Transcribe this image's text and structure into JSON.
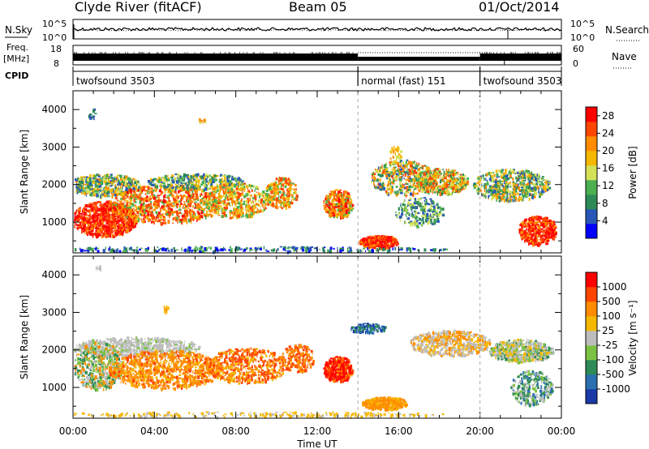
{
  "header": {
    "station": "Clyde River (fitACF)",
    "beam": "Beam 05",
    "date": "01/Oct/2014"
  },
  "strips": {
    "nsky_label": "N.Sky",
    "nsky_ticks": [
      "10^5",
      "10^0"
    ],
    "nsky_right_ticks": [
      "10^5",
      "10^0"
    ],
    "nsearch_label": "N.Search",
    "freq_label": "Freq.",
    "freq_unit": "[MHz]",
    "freq_ticks": [
      "18",
      "8"
    ],
    "nave_ticks": [
      "60",
      "0"
    ],
    "nave_label": "Nave",
    "cpid_label": "CPID"
  },
  "cpid_segments": [
    {
      "name": "twofsound 3503",
      "start_hour": 0,
      "end_hour": 14.0
    },
    {
      "name": "normal (fast) 151",
      "start_hour": 14.0,
      "end_hour": 20.0
    },
    {
      "name": "twofsound 3503",
      "start_hour": 20.0,
      "end_hour": 24
    }
  ],
  "chart_data": [
    {
      "type": "heatmap",
      "panel": "power",
      "xlabel": "",
      "ylabel": "Slant Range [km]",
      "x_range_hours": [
        0,
        24
      ],
      "x_ticks": [
        "00:00",
        "04:00",
        "08:00",
        "12:00",
        "16:00",
        "20:00",
        "00:00"
      ],
      "ylim": [
        180,
        4500
      ],
      "y_ticks": [
        1000,
        2000,
        3000,
        4000
      ],
      "colorbar": {
        "label": "Power [dB]",
        "ticks": [
          4,
          8,
          12,
          16,
          20,
          24,
          28
        ],
        "range": [
          0,
          30
        ],
        "colors": [
          "#0000ff",
          "#2a57b7",
          "#2e8b57",
          "#4caf50",
          "#d4e157",
          "#f5b800",
          "#ff8c00",
          "#ff4500",
          "#ff0000"
        ]
      }
    },
    {
      "type": "heatmap",
      "panel": "velocity",
      "xlabel": "Time UT",
      "ylabel": "Slant Range [km]",
      "x_range_hours": [
        0,
        24
      ],
      "x_ticks": [
        "00:00",
        "04:00",
        "08:00",
        "12:00",
        "16:00",
        "20:00",
        "00:00"
      ],
      "ylim": [
        180,
        4500
      ],
      "y_ticks": [
        1000,
        2000,
        3000,
        4000
      ],
      "colorbar": {
        "label": "Velocity [m s⁻¹]",
        "ticks": [
          "1000",
          "500",
          "100",
          "25",
          "-25",
          "-100",
          "-500",
          "-1000"
        ],
        "colors": [
          "#1a3aa8",
          "#2a6fb0",
          "#2e8b57",
          "#7cc242",
          "#bdbdbd",
          "#f5b800",
          "#ff8c00",
          "#ff4500",
          "#ff0000"
        ]
      }
    }
  ]
}
